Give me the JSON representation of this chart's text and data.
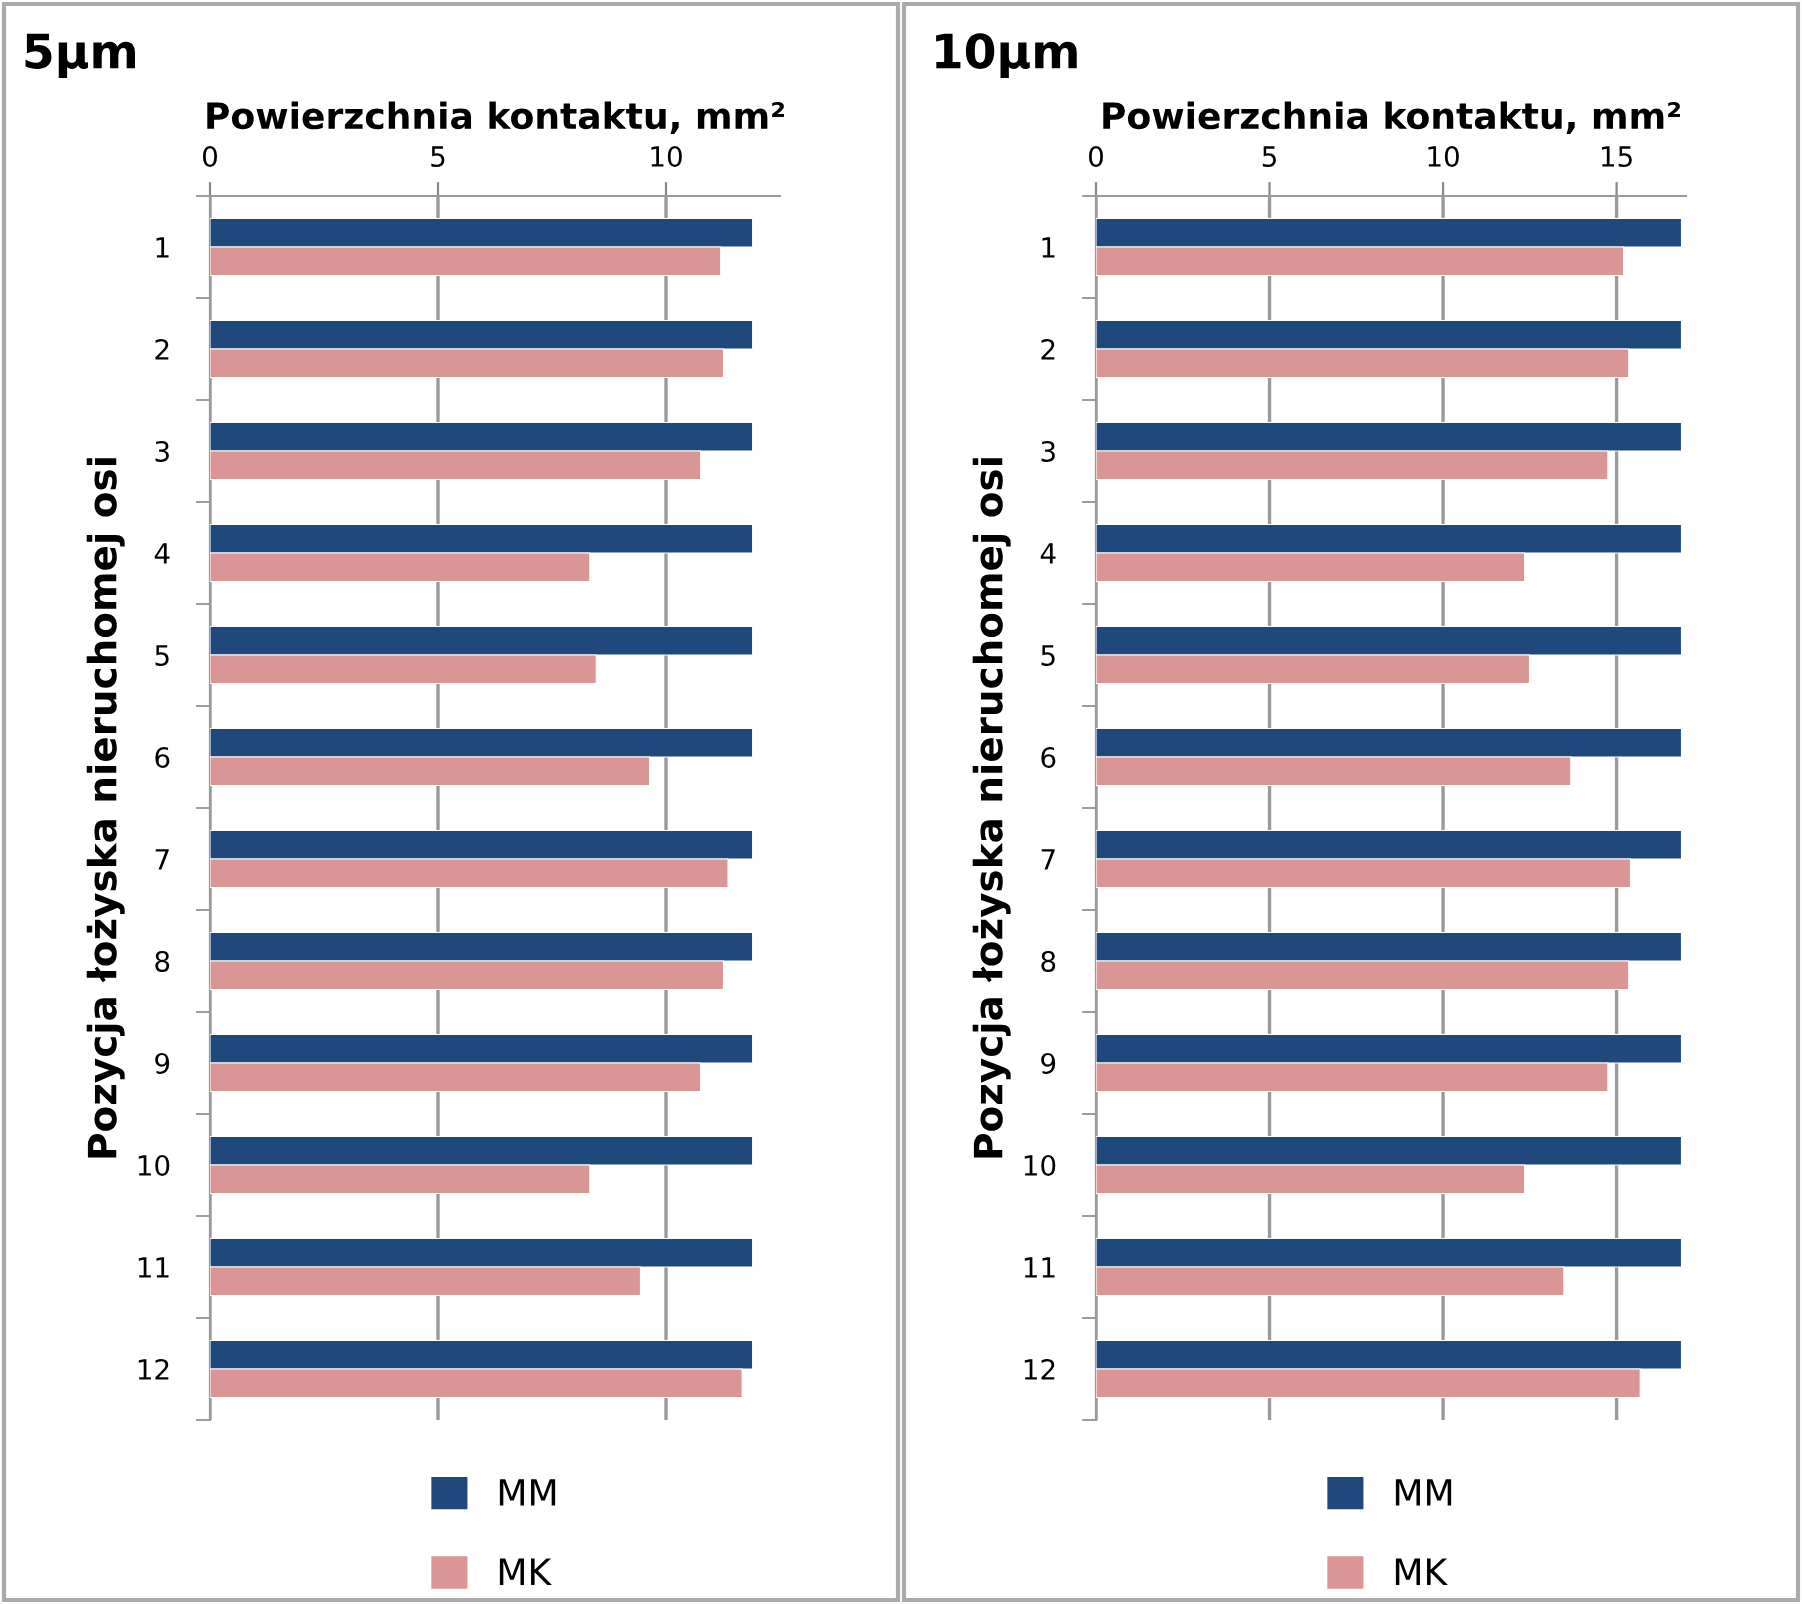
{
  "chart_data": [
    {
      "type": "bar",
      "orientation": "horizontal",
      "title": "5µm",
      "xlabel": "Powierzchnia kontaktu, mm²",
      "ylabel": "Pozycja łożyska nieruchomej osi",
      "categories": [
        "1",
        "2",
        "3",
        "4",
        "5",
        "6",
        "7",
        "8",
        "9",
        "10",
        "11",
        "12"
      ],
      "series": [
        {
          "name": "MM",
          "color": "#1f497d",
          "values": [
            11.9,
            11.9,
            11.9,
            11.9,
            11.9,
            11.9,
            11.9,
            11.9,
            11.9,
            11.9,
            11.9,
            11.9
          ]
        },
        {
          "name": "MK",
          "color": "#d99694",
          "values": [
            11.2,
            11.26,
            10.76,
            8.33,
            8.47,
            9.64,
            11.36,
            11.26,
            10.76,
            8.33,
            9.44,
            11.67
          ]
        }
      ],
      "xlim": [
        0,
        12.5
      ],
      "xticks": [
        0,
        5,
        10
      ],
      "grid": "x",
      "legend": "bottom"
    },
    {
      "type": "bar",
      "orientation": "horizontal",
      "title": "10µm",
      "xlabel": "Powierzchnia kontaktu, mm²",
      "ylabel": "Pozycja łożyska nieruchomej osi",
      "categories": [
        "1",
        "2",
        "3",
        "4",
        "5",
        "6",
        "7",
        "8",
        "9",
        "10",
        "11",
        "12"
      ],
      "series": [
        {
          "name": "MM",
          "color": "#1f497d",
          "values": [
            16.87,
            16.87,
            16.87,
            16.87,
            16.87,
            16.87,
            16.87,
            16.87,
            16.87,
            16.87,
            16.87,
            16.87
          ]
        },
        {
          "name": "MK",
          "color": "#d99694",
          "values": [
            15.2,
            15.35,
            14.75,
            12.35,
            12.49,
            13.68,
            15.4,
            15.35,
            14.75,
            12.35,
            13.48,
            15.68
          ]
        }
      ],
      "xlim": [
        0,
        17
      ],
      "xticks": [
        0,
        5,
        10,
        15
      ],
      "grid": "x",
      "legend": "bottom"
    }
  ]
}
